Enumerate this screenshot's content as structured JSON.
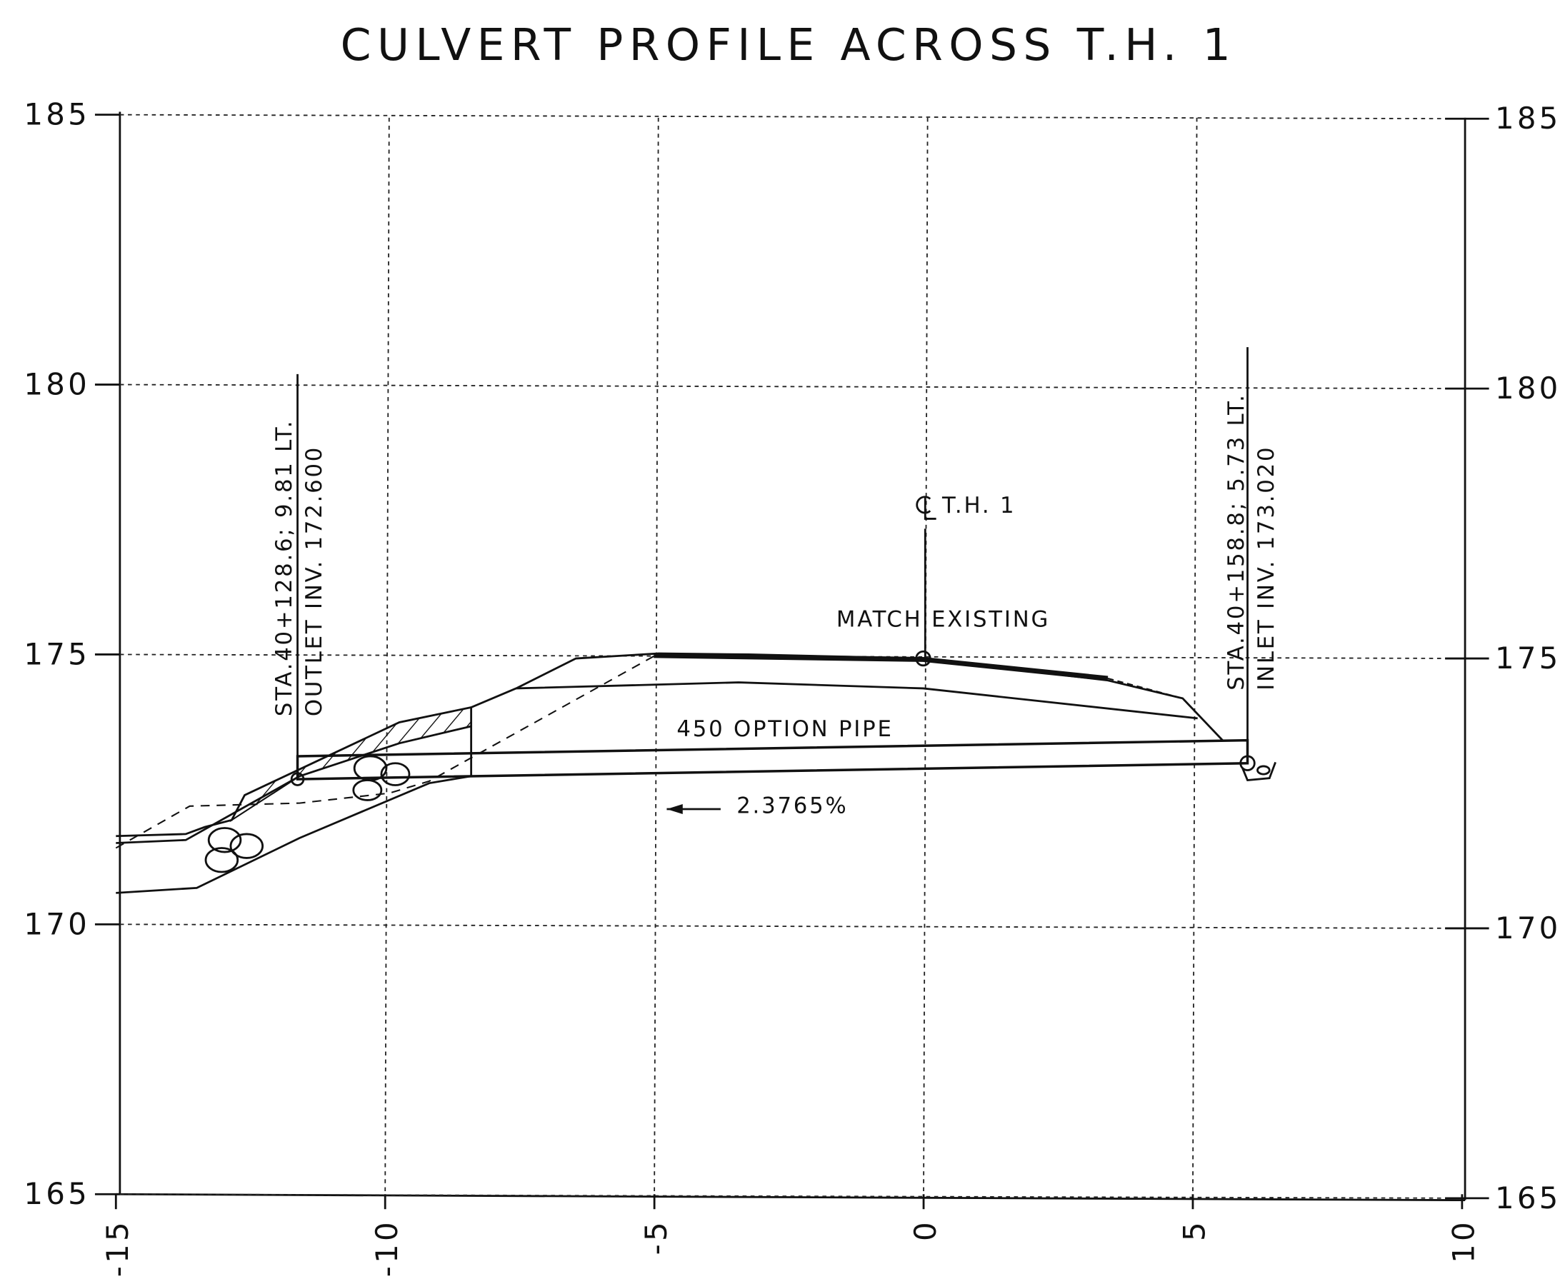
{
  "title": "CULVERT PROFILE ACROSS T.H. 1",
  "axes": {
    "xlim": [
      -15,
      10
    ],
    "ylim": [
      165,
      185
    ],
    "xticks": [
      -15,
      -10,
      -5,
      0,
      5,
      10
    ],
    "yticks": [
      165,
      170,
      175,
      180,
      185
    ]
  },
  "annotations": {
    "outlet_station": "STA.40+128.6; 9.81 LT.",
    "outlet_invert": "OUTLET INV. 172.600",
    "inlet_station": "STA.40+158.8; 5.73 LT.",
    "inlet_invert": "INLET INV. 173.020",
    "centerline": "T.H. 1",
    "match": "MATCH EXISTING",
    "pipe": "450 OPTION PIPE",
    "slope": "2.3765%"
  }
}
